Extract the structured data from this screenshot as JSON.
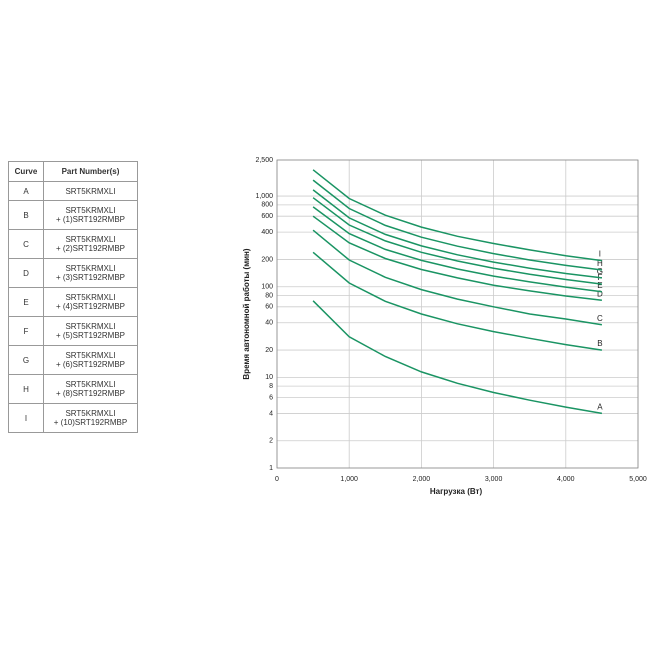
{
  "table": {
    "header": [
      "Curve",
      "Part Number(s)"
    ],
    "rows": [
      [
        "A",
        [
          "SRT5KRMXLI"
        ]
      ],
      [
        "B",
        [
          "SRT5KRMXLI",
          "+ (1)SRT192RMBP"
        ]
      ],
      [
        "C",
        [
          "SRT5KRMXLI",
          "+ (2)SRT192RMBP"
        ]
      ],
      [
        "D",
        [
          "SRT5KRMXLI",
          "+ (3)SRT192RMBP"
        ]
      ],
      [
        "E",
        [
          "SRT5KRMXLI",
          "+ (4)SRT192RMBP"
        ]
      ],
      [
        "F",
        [
          "SRT5KRMXLI",
          "+ (5)SRT192RMBP"
        ]
      ],
      [
        "G",
        [
          "SRT5KRMXLI",
          "+ (6)SRT192RMBP"
        ]
      ],
      [
        "H",
        [
          "SRT5KRMXLI",
          "+ (8)SRT192RMBP"
        ]
      ],
      [
        "I",
        [
          "SRT5KRMXLI",
          "+ (10)SRT192RMBP"
        ]
      ]
    ]
  },
  "chart_data": {
    "type": "line",
    "log_y": true,
    "grid": true,
    "x_label": "Нагрузка (Вт)",
    "y_label": "Время автономной работы (мин)",
    "x": [
      500,
      1000,
      1500,
      2000,
      2500,
      3000,
      3500,
      4000,
      4500
    ],
    "xlim": [
      0,
      5000
    ],
    "xticks": [
      0,
      {
        "value": 1000,
        "label": "1,000"
      },
      {
        "value": 2000,
        "label": "2,000"
      },
      {
        "value": 3000,
        "label": "3,000"
      },
      {
        "value": 4000,
        "label": "4,000"
      },
      {
        "value": 5000,
        "label": "5,000"
      }
    ],
    "ylim": [
      1,
      2500
    ],
    "yticks": [
      1,
      2,
      4,
      6,
      8,
      10,
      20,
      40,
      60,
      80,
      100,
      200,
      400,
      600,
      800,
      {
        "value": 1000,
        "label": "1,000"
      },
      {
        "value": 2500,
        "label": "2,500"
      }
    ],
    "series": [
      {
        "name": "A",
        "color": "#1a9463",
        "values": [
          70,
          28,
          17,
          11.5,
          8.6,
          6.8,
          5.6,
          4.7,
          4
        ]
      },
      {
        "name": "B",
        "color": "#1a9463",
        "values": [
          240,
          110,
          69,
          50,
          39,
          32,
          27,
          23,
          20
        ]
      },
      {
        "name": "C",
        "color": "#1a9463",
        "values": [
          420,
          197,
          127,
          93,
          73,
          60,
          50,
          44,
          38
        ]
      },
      {
        "name": "D",
        "color": "#1a9463",
        "values": [
          600,
          305,
          205,
          155,
          125,
          104,
          90,
          79,
          71
        ]
      },
      {
        "name": "E",
        "color": "#1a9463",
        "values": [
          760,
          385,
          258,
          195,
          157,
          131,
          113,
          99,
          88
        ]
      },
      {
        "name": "F",
        "color": "#1a9463",
        "values": [
          960,
          480,
          320,
          240,
          192,
          160,
          137,
          120,
          107
        ]
      },
      {
        "name": "G",
        "color": "#1a9463",
        "values": [
          1170,
          575,
          378,
          282,
          225,
          187,
          160,
          140,
          125
        ]
      },
      {
        "name": "H",
        "color": "#1a9463",
        "values": [
          1500,
          730,
          475,
          352,
          280,
          232,
          197,
          172,
          153
        ]
      },
      {
        "name": "I",
        "color": "#1a9463",
        "values": [
          1950,
          940,
          615,
          455,
          360,
          300,
          255,
          220,
          194
        ]
      }
    ]
  }
}
